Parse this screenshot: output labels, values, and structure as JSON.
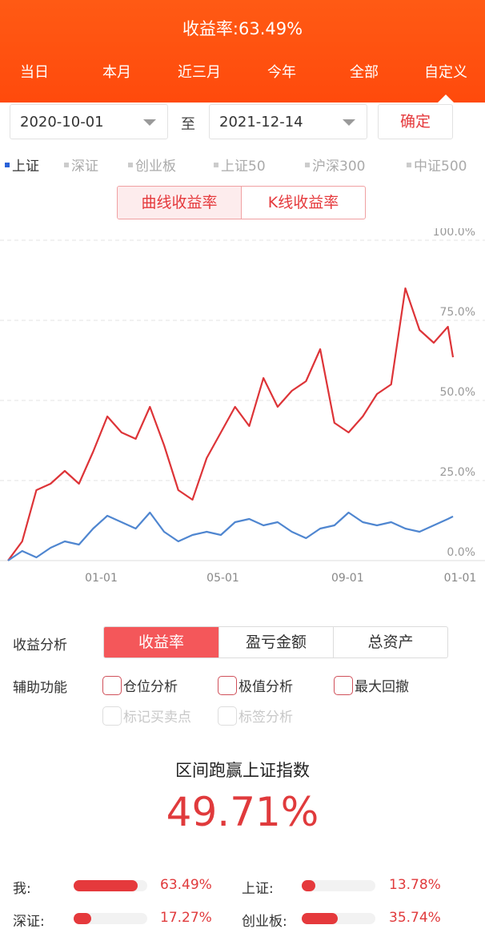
{
  "header": {
    "title": "收益率:63.49%"
  },
  "tabs": [
    {
      "label": "当日"
    },
    {
      "label": "本月"
    },
    {
      "label": "近三月"
    },
    {
      "label": "今年"
    },
    {
      "label": "全部"
    },
    {
      "label": "自定义",
      "selected": true
    }
  ],
  "date_range": {
    "start": "2020-10-01",
    "to_label": "至",
    "end": "2021-12-14",
    "confirm_label": "确定"
  },
  "indices": [
    {
      "label": "上证",
      "active": true
    },
    {
      "label": "深证"
    },
    {
      "label": "创业板"
    },
    {
      "label": "上证50"
    },
    {
      "label": "沪深300"
    },
    {
      "label": "中证500"
    }
  ],
  "curve_toggle": {
    "options": [
      "曲线收益率",
      "K线收益率"
    ],
    "selected": 0
  },
  "colors": {
    "brand": "#ff4f10",
    "accent_red": "#e5393c",
    "index_blue": "#2a62d8"
  },
  "chart_data": {
    "type": "line",
    "x_ticks": [
      "01-01",
      "05-01",
      "09-01",
      "01-01"
    ],
    "y_ticks": [
      "0.0%",
      "25.0%",
      "50.0%",
      "75.0%",
      "100.0%"
    ],
    "ylim": [
      0,
      100
    ],
    "grid": true,
    "x": [
      "2020-10-01",
      "2020-10-15",
      "2020-10-29",
      "2020-11-12",
      "2020-11-26",
      "2020-12-10",
      "2020-12-24",
      "2021-01-07",
      "2021-01-21",
      "2021-02-04",
      "2021-02-18",
      "2021-03-04",
      "2021-03-18",
      "2021-04-01",
      "2021-04-15",
      "2021-04-29",
      "2021-05-13",
      "2021-05-27",
      "2021-06-10",
      "2021-06-24",
      "2021-07-08",
      "2021-07-22",
      "2021-08-05",
      "2021-08-19",
      "2021-09-02",
      "2021-09-16",
      "2021-09-30",
      "2021-10-14",
      "2021-10-28",
      "2021-11-11",
      "2021-11-25",
      "2021-12-09",
      "2021-12-14"
    ],
    "series": [
      {
        "values": [
          0,
          6,
          22,
          24,
          28,
          24,
          34,
          45,
          40,
          38,
          48,
          36,
          22,
          19,
          32,
          40,
          48,
          42,
          57,
          48,
          53,
          56,
          66,
          43,
          40,
          45,
          52,
          55,
          85,
          72,
          68,
          73,
          63.49
        ]
      },
      {
        "values": [
          0,
          3,
          1,
          4,
          6,
          5,
          10,
          14,
          12,
          10,
          15,
          9,
          6,
          8,
          9,
          8,
          12,
          13,
          11,
          12,
          9,
          7,
          10,
          11,
          15,
          12,
          11,
          12,
          10,
          9,
          11,
          13,
          13.78
        ]
      }
    ]
  },
  "analysis": {
    "label": "收益分析",
    "options": [
      "收益率",
      "盈亏金额",
      "总资产"
    ],
    "selected": 0
  },
  "aux": {
    "label": "辅助功能",
    "options": [
      {
        "label": "仓位分析",
        "enabled": true
      },
      {
        "label": "极值分析",
        "enabled": true
      },
      {
        "label": "最大回撤",
        "enabled": true
      },
      {
        "label": "标记买卖点",
        "enabled": false
      },
      {
        "label": "标签分析",
        "enabled": false
      }
    ]
  },
  "beat": {
    "title": "区间跑赢上证指数",
    "value": "49.71%"
  },
  "comparison": [
    {
      "label": "我:",
      "value": "63.49%",
      "fraction": 0.87
    },
    {
      "label": "上证:",
      "value": "13.78%",
      "fraction": 0.19
    },
    {
      "label": "深证:",
      "value": "17.27%",
      "fraction": 0.24
    },
    {
      "label": "创业板:",
      "value": "35.74%",
      "fraction": 0.49
    }
  ]
}
